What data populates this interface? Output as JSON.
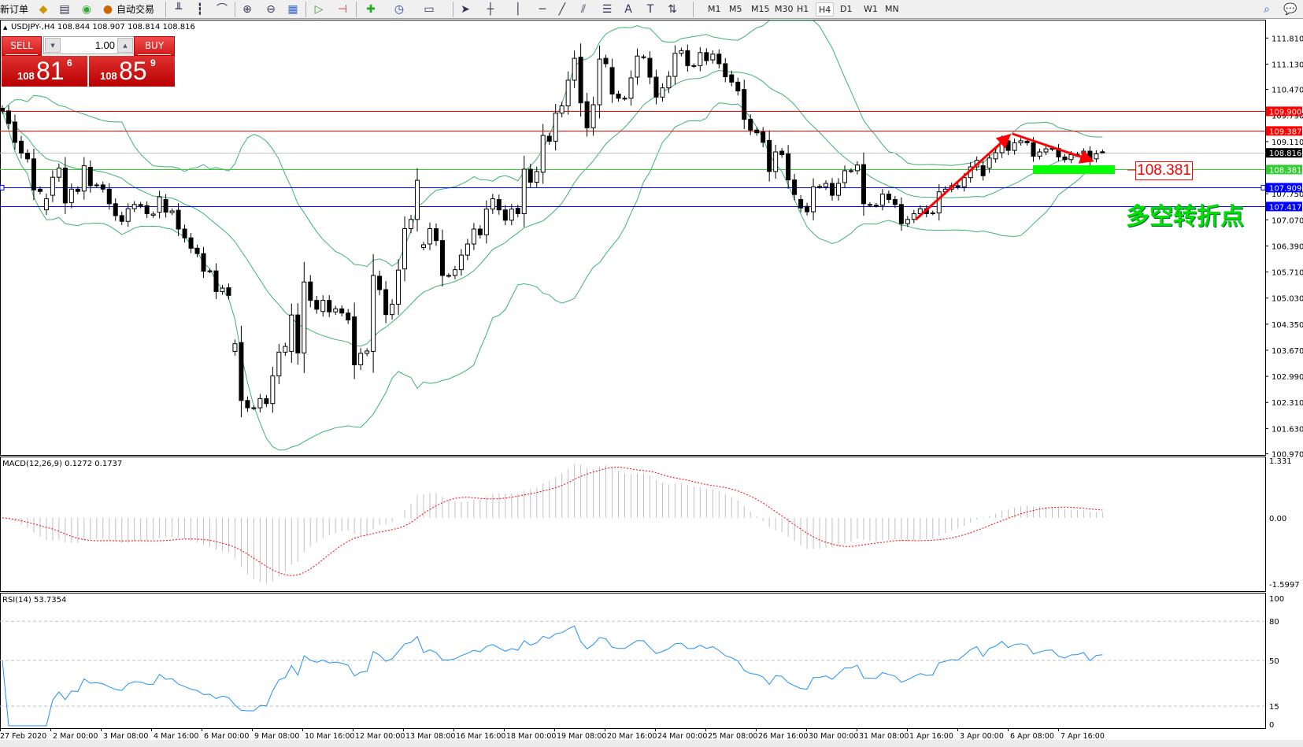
{
  "toolbar": {
    "new_order": "新订单",
    "auto_trading": "自动交易",
    "icons": [
      "navigator-icon",
      "market-watch-icon",
      "signals-icon",
      "bar-chart-icon",
      "candlestick-icon",
      "line-chart-icon",
      "zoom-in-icon",
      "zoom-out-icon",
      "tile-windows-icon",
      "auto-scroll-icon",
      "chart-shift-icon",
      "indicators-icon",
      "periods-icon",
      "templates-icon",
      "cursor-icon",
      "crosshair-icon",
      "vertical-line-icon",
      "horizontal-line-icon",
      "trendline-icon",
      "equidistant-channel-icon",
      "fibonacci-icon",
      "text-icon",
      "text-label-icon",
      "arrows-icon"
    ],
    "timeframes": [
      "M1",
      "M5",
      "M15",
      "M30",
      "H1",
      "H4",
      "D1",
      "W1",
      "MN"
    ],
    "active_timeframe": "H4"
  },
  "chart": {
    "header": "USDJPY-,H4  108.844 108.907 108.814 108.816",
    "symbol": "USDJPY-",
    "timeframe": "H4",
    "trade_panel": {
      "sell_label": "SELL",
      "buy_label": "BUY",
      "lot": "1.00",
      "sell_prefix": "108",
      "sell_big": "81",
      "sell_sup": "6",
      "buy_prefix": "108",
      "buy_big": "85",
      "buy_sup": "9"
    },
    "annotation_label": "108.381",
    "annotation_text": "多空转折点"
  },
  "chart_data": {
    "type": "candlestick",
    "last_bar": {
      "open": 108.844,
      "high": 108.907,
      "low": 108.814,
      "close": 108.816
    },
    "ylim": [
      100.97,
      111.81
    ],
    "price_ticks": [
      "111.810",
      "111.130",
      "110.470",
      "109.790",
      "109.110",
      "107.750",
      "107.070",
      "106.390",
      "105.710",
      "105.030",
      "104.350",
      "103.670",
      "102.990",
      "102.310",
      "101.630",
      "100.970"
    ],
    "price_lines": [
      {
        "value": 109.9,
        "label": "109.900",
        "color": "#ff0000"
      },
      {
        "value": 109.387,
        "label": "109.387",
        "color": "#ff0000"
      },
      {
        "value": 108.816,
        "label": "108.816",
        "color": "#c0c0c0",
        "tag": "#000000"
      },
      {
        "value": 108.381,
        "label": "108.381",
        "color": "#33cc33",
        "tag": "#33cc33"
      },
      {
        "value": 107.909,
        "label": "107.909",
        "color": "#0000ff"
      },
      {
        "value": 107.417,
        "label": "107.417",
        "color": "#0000ff"
      }
    ],
    "time_labels": [
      "27 Feb 2020",
      "2 Mar 00:00",
      "3 Mar 08:00",
      "4 Mar 16:00",
      "6 Mar 00:00",
      "9 Mar 08:00",
      "10 Mar 16:00",
      "12 Mar 00:00",
      "13 Mar 08:00",
      "16 Mar 16:00",
      "18 Mar 00:00",
      "19 Mar 08:00",
      "20 Mar 16:00",
      "24 Mar 00:00",
      "25 Mar 08:00",
      "26 Mar 16:00",
      "30 Mar 00:00",
      "31 Mar 08:00",
      "1 Apr 16:00",
      "3 Apr 00:00",
      "6 Apr 08:00",
      "7 Apr 16:00"
    ],
    "bars_oc": [
      [
        109.98,
        109.91
      ],
      [
        109.91,
        109.58
      ],
      [
        109.62,
        109.09
      ],
      [
        109.12,
        108.81
      ],
      [
        108.81,
        108.66
      ],
      [
        108.66,
        107.85
      ],
      [
        107.87,
        107.81
      ],
      [
        107.33,
        107.62
      ],
      [
        107.71,
        108.18
      ],
      [
        108.18,
        108.42
      ],
      [
        108.42,
        107.51
      ],
      [
        107.52,
        107.87
      ],
      [
        107.87,
        107.81
      ],
      [
        107.82,
        108.48
      ],
      [
        108.44,
        107.96
      ],
      [
        107.98,
        107.98
      ],
      [
        107.98,
        107.87
      ],
      [
        107.87,
        107.49
      ],
      [
        107.49,
        107.18
      ],
      [
        107.18,
        107.03
      ],
      [
        107.03,
        107.36
      ],
      [
        107.36,
        107.47
      ],
      [
        107.47,
        107.44
      ],
      [
        107.44,
        107.23
      ],
      [
        107.19,
        107.22
      ],
      [
        107.27,
        107.67
      ],
      [
        107.6,
        107.27
      ],
      [
        107.26,
        107.3
      ],
      [
        107.32,
        106.83
      ],
      [
        106.83,
        106.6
      ],
      [
        106.6,
        106.33
      ],
      [
        106.33,
        106.19
      ],
      [
        106.19,
        105.73
      ],
      [
        105.74,
        105.74
      ],
      [
        105.74,
        105.2
      ],
      [
        105.2,
        105.29
      ],
      [
        105.3,
        105.1
      ],
      [
        103.64,
        103.84
      ],
      [
        103.87,
        102.36
      ],
      [
        102.36,
        102.17
      ],
      [
        102.17,
        102.17
      ],
      [
        102.17,
        102.41
      ],
      [
        102.41,
        102.28
      ],
      [
        102.28,
        103.0
      ],
      [
        103.0,
        103.62
      ],
      [
        103.62,
        103.77
      ],
      [
        103.64,
        104.59
      ],
      [
        104.59,
        103.6
      ],
      [
        103.6,
        105.45
      ],
      [
        105.45,
        104.97
      ],
      [
        104.97,
        104.74
      ],
      [
        104.68,
        104.97
      ],
      [
        104.97,
        104.67
      ],
      [
        104.67,
        104.75
      ],
      [
        104.75,
        104.64
      ],
      [
        104.64,
        104.46
      ],
      [
        104.54,
        103.29
      ],
      [
        103.29,
        103.59
      ],
      [
        103.59,
        103.65
      ],
      [
        103.64,
        105.62
      ],
      [
        105.6,
        105.25
      ],
      [
        105.25,
        104.6
      ],
      [
        104.6,
        104.87
      ],
      [
        104.87,
        105.76
      ],
      [
        105.79,
        106.84
      ],
      [
        106.84,
        107.08
      ],
      [
        107.08,
        108.1
      ],
      [
        106.35,
        106.42
      ],
      [
        106.44,
        106.84
      ],
      [
        106.84,
        106.53
      ],
      [
        106.53,
        105.62
      ],
      [
        105.62,
        105.62
      ],
      [
        105.62,
        105.77
      ],
      [
        105.77,
        106.15
      ],
      [
        106.15,
        106.44
      ],
      [
        106.44,
        106.83
      ],
      [
        106.83,
        106.68
      ],
      [
        106.68,
        107.35
      ],
      [
        107.35,
        107.62
      ],
      [
        107.6,
        107.33
      ],
      [
        107.33,
        107.06
      ],
      [
        107.06,
        107.35
      ],
      [
        107.37,
        107.23
      ],
      [
        107.23,
        108.39
      ],
      [
        108.39,
        108.05
      ],
      [
        108.05,
        108.33
      ],
      [
        108.31,
        109.27
      ],
      [
        109.25,
        109.12
      ],
      [
        109.12,
        109.85
      ],
      [
        109.85,
        110.04
      ],
      [
        110.04,
        110.71
      ],
      [
        110.71,
        111.28
      ],
      [
        111.31,
        110.12
      ],
      [
        110.15,
        109.47
      ],
      [
        109.47,
        110.07
      ],
      [
        110.07,
        111.26
      ],
      [
        111.28,
        111.14
      ],
      [
        111.04,
        110.35
      ],
      [
        110.35,
        110.24
      ],
      [
        110.24,
        110.24
      ],
      [
        110.24,
        110.77
      ],
      [
        110.79,
        111.34
      ],
      [
        111.32,
        111.32
      ],
      [
        111.28,
        110.79
      ],
      [
        110.79,
        110.27
      ],
      [
        110.27,
        110.51
      ],
      [
        110.51,
        110.81
      ],
      [
        110.81,
        111.41
      ],
      [
        111.41,
        111.48
      ],
      [
        111.48,
        111.09
      ],
      [
        111.09,
        111.09
      ],
      [
        111.09,
        111.43
      ],
      [
        111.43,
        111.22
      ],
      [
        111.24,
        111.39
      ],
      [
        111.39,
        111.14
      ],
      [
        111.14,
        110.8
      ],
      [
        110.85,
        110.66
      ],
      [
        110.66,
        110.43
      ],
      [
        110.47,
        109.69
      ],
      [
        109.69,
        109.41
      ],
      [
        109.41,
        109.34
      ],
      [
        109.36,
        109.09
      ],
      [
        109.14,
        108.33
      ],
      [
        108.33,
        108.84
      ],
      [
        108.86,
        108.77
      ],
      [
        108.79,
        108.11
      ],
      [
        108.11,
        107.73
      ],
      [
        107.6,
        107.38
      ],
      [
        107.42,
        107.28
      ],
      [
        107.28,
        107.93
      ],
      [
        107.94,
        107.94
      ],
      [
        107.93,
        108.02
      ],
      [
        108.02,
        107.71
      ],
      [
        107.71,
        108.02
      ],
      [
        108.04,
        108.35
      ],
      [
        108.35,
        108.35
      ],
      [
        108.35,
        108.5
      ],
      [
        108.51,
        107.49
      ],
      [
        107.47,
        107.47
      ],
      [
        107.45,
        107.45
      ],
      [
        107.45,
        107.74
      ],
      [
        107.74,
        107.6
      ],
      [
        107.6,
        107.47
      ],
      [
        107.47,
        106.97
      ],
      [
        106.97,
        107.08
      ],
      [
        107.08,
        107.23
      ],
      [
        107.23,
        107.36
      ],
      [
        107.36,
        107.23
      ],
      [
        107.25,
        107.25
      ],
      [
        107.25,
        107.8
      ],
      [
        107.8,
        107.87
      ],
      [
        107.87,
        107.96
      ],
      [
        107.96,
        107.93
      ],
      [
        107.93,
        108.17
      ],
      [
        108.17,
        108.45
      ],
      [
        108.45,
        108.62
      ],
      [
        108.48,
        108.22
      ],
      [
        108.42,
        108.68
      ],
      [
        108.66,
        108.82
      ],
      [
        108.82,
        109.13
      ],
      [
        109.13,
        108.88
      ],
      [
        108.88,
        109.08
      ],
      [
        109.08,
        109.13
      ],
      [
        109.12,
        109.08
      ],
      [
        109.08,
        108.73
      ],
      [
        108.73,
        108.84
      ],
      [
        108.84,
        108.92
      ],
      [
        108.92,
        108.93
      ],
      [
        108.93,
        108.71
      ],
      [
        108.71,
        108.64
      ],
      [
        108.64,
        108.77
      ],
      [
        108.77,
        108.78
      ],
      [
        108.8,
        108.86
      ],
      [
        108.86,
        108.59
      ],
      [
        108.66,
        108.79
      ],
      [
        108.844,
        108.816
      ]
    ],
    "bollinger": {
      "color": "#3cb371"
    },
    "macd": {
      "label": "MACD(12,26,9) 0.1272 0.1737",
      "ylim": [
        -1.5997,
        1.331
      ],
      "ticks": [
        "1.331",
        "0.00",
        "-1.5997"
      ],
      "histogram_color": "#c0c0c0",
      "signal_color": "#ff0000"
    },
    "rsi": {
      "label": "RSI(14) 53.7354",
      "ylim": [
        0,
        100
      ],
      "levels": [
        80,
        50,
        15
      ],
      "ticks": [
        "100",
        "80",
        "50",
        "15",
        "0"
      ],
      "color": "#1e90ff"
    },
    "arrows_color": "#ff0000",
    "zone_color": "#00ff00"
  }
}
